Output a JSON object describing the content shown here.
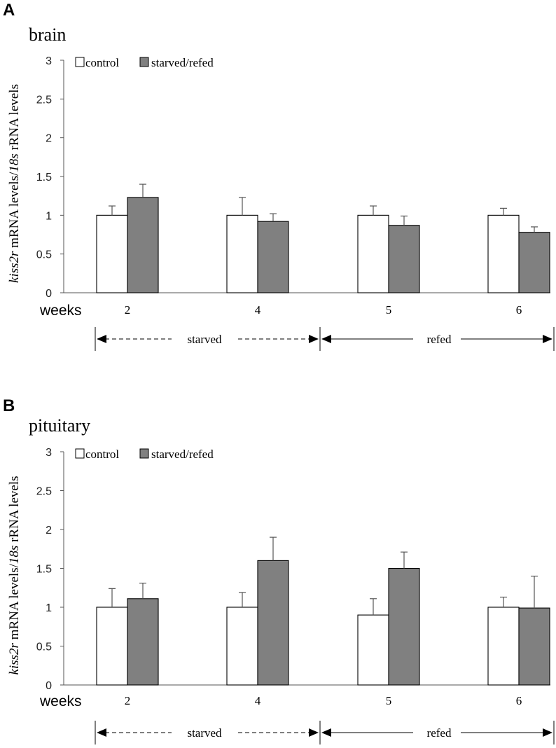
{
  "chart_data": [
    {
      "type": "bar",
      "panel": "A",
      "title": "brain",
      "ylabel": {
        "gene": "kiss2r",
        "mid": " mRNA levels/",
        "ref": "18s",
        "tail": " rRNA levels"
      },
      "xlabel": "weeks",
      "ylim": [
        0,
        3
      ],
      "yticks": [
        "0",
        "0.5",
        "1",
        "1.5",
        "2",
        "2.5",
        "3"
      ],
      "categories": [
        "2",
        "4",
        "5",
        "6"
      ],
      "series": [
        {
          "name": "control",
          "color": "#ffffff",
          "values": [
            1.0,
            1.0,
            1.0,
            1.0
          ],
          "errors": [
            0.12,
            0.23,
            0.12,
            0.09
          ]
        },
        {
          "name": "starved/refed",
          "color": "#808080",
          "values": [
            1.23,
            0.92,
            0.87,
            0.78
          ],
          "errors": [
            0.17,
            0.1,
            0.12,
            0.07
          ]
        }
      ],
      "phases": [
        {
          "label": "starved",
          "style": "dashed"
        },
        {
          "label": "refed",
          "style": "solid"
        }
      ]
    },
    {
      "type": "bar",
      "panel": "B",
      "title": "pituitary",
      "ylabel": {
        "gene": "kiss2r",
        "mid": " mRNA levels/",
        "ref": "18s",
        "tail": " rRNA levels"
      },
      "xlabel": "weeks",
      "ylim": [
        0,
        3
      ],
      "yticks": [
        "0",
        "0.5",
        "1",
        "1.5",
        "2",
        "2.5",
        "3"
      ],
      "categories": [
        "2",
        "4",
        "5",
        "6"
      ],
      "series": [
        {
          "name": "control",
          "color": "#ffffff",
          "values": [
            1.0,
            1.0,
            0.9,
            1.0
          ],
          "errors": [
            0.24,
            0.19,
            0.21,
            0.13
          ]
        },
        {
          "name": "starved/refed",
          "color": "#808080",
          "values": [
            1.11,
            1.6,
            1.5,
            0.99
          ],
          "errors": [
            0.2,
            0.3,
            0.21,
            0.41
          ]
        }
      ],
      "phases": [
        {
          "label": "starved",
          "style": "dashed"
        },
        {
          "label": "refed",
          "style": "solid"
        }
      ]
    }
  ]
}
